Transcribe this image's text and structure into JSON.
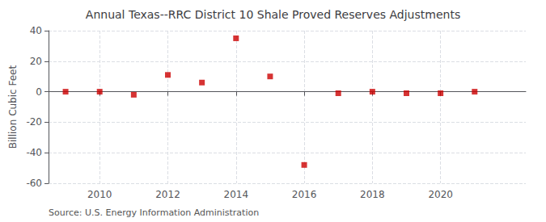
{
  "chart_data": {
    "type": "scatter",
    "title": "Annual Texas--RRC District 10 Shale Proved Reserves Adjustments",
    "ylabel": "Billion Cubic Feet",
    "annotations": [
      "Source: U.S. Energy Information Administration"
    ],
    "x": [
      2009,
      2010,
      2011,
      2012,
      2013,
      2014,
      2015,
      2016,
      2017,
      2018,
      2019,
      2020,
      2021
    ],
    "values": [
      0.0,
      0.0,
      -2.0,
      11.0,
      6.0,
      35.0,
      10.0,
      -48.0,
      -1.0,
      0.0,
      -1.0,
      -1.0,
      0.0
    ],
    "color": "#cc0000",
    "marker": "square",
    "xlim": [
      2008.5,
      2022.5
    ],
    "xticks": [
      2010,
      2012,
      2014,
      2016,
      2018,
      2020
    ],
    "ylim": [
      -60,
      40
    ],
    "yticks": [
      -60,
      -40,
      -20,
      0,
      20,
      40
    ],
    "grid": true
  }
}
